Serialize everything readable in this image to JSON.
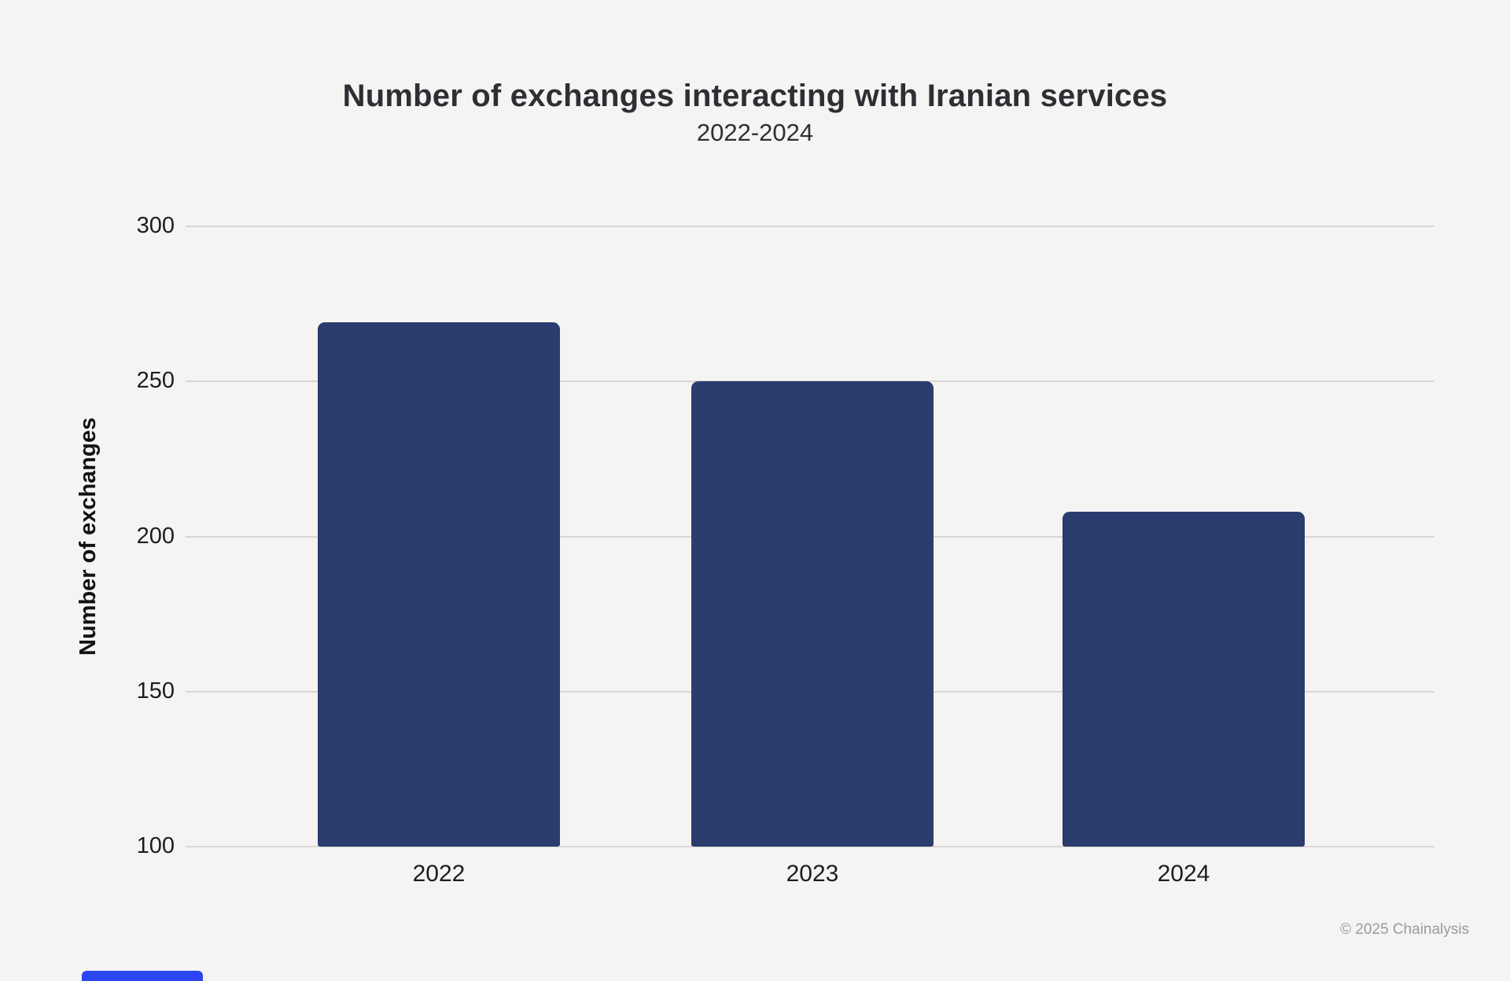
{
  "header": {
    "title": "Number of exchanges interacting with Iranian services",
    "subtitle": "2022-2024"
  },
  "footer": {
    "copyright": "© 2025 Chainalysis"
  },
  "colors": {
    "background": "#f5f4f2",
    "bar": "#2b3c6f",
    "gridline": "#d8d7d5",
    "title_text": "#2e2e35",
    "tick_text": "#1d1d1d",
    "footer_text": "#9b9b9b",
    "brand_bar": "#2b46f0"
  },
  "chart_data": {
    "type": "bar",
    "title": "Number of exchanges interacting with Iranian services",
    "subtitle": "2022-2024",
    "categories": [
      "2022",
      "2023",
      "2024"
    ],
    "values": [
      269,
      250,
      208
    ],
    "xlabel": "",
    "ylabel": "Number of exchanges",
    "ylim": [
      100,
      300
    ],
    "yticks": [
      300,
      250,
      200,
      150,
      100
    ],
    "grid": true,
    "legend": false,
    "bar_color": "#2b3c6f"
  }
}
